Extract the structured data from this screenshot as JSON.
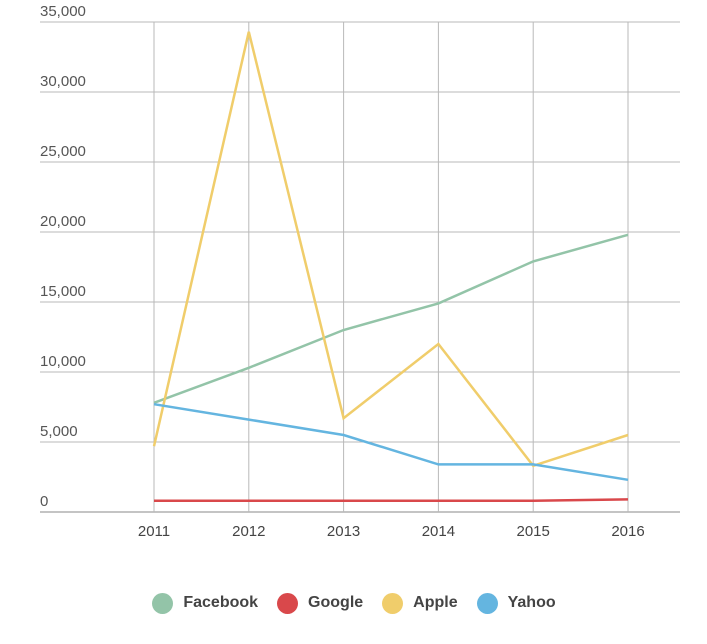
{
  "chart_data": {
    "type": "line",
    "title": "",
    "xlabel": "",
    "ylabel": "",
    "x": [
      "2011",
      "2012",
      "2013",
      "2014",
      "2015",
      "2016"
    ],
    "ylim": [
      0,
      35000
    ],
    "y_ticks": [
      0,
      5000,
      10000,
      15000,
      20000,
      25000,
      30000,
      35000
    ],
    "y_tick_labels": [
      "0",
      "5,000",
      "10,000",
      "15,000",
      "20,000",
      "25,000",
      "30,000",
      "35,000"
    ],
    "grid": true,
    "legend_position": "bottom",
    "series": [
      {
        "name": "Facebook",
        "color": "#93c4a8",
        "values": [
          7800,
          10300,
          13000,
          14900,
          17900,
          19800
        ]
      },
      {
        "name": "Google",
        "color": "#d9484b",
        "values": [
          800,
          800,
          800,
          800,
          800,
          900
        ]
      },
      {
        "name": "Apple",
        "color": "#f0cd6b",
        "values": [
          4700,
          34300,
          6700,
          12000,
          3300,
          5500
        ]
      },
      {
        "name": "Yahoo",
        "color": "#64b5e0",
        "values": [
          7700,
          6600,
          5500,
          3400,
          3400,
          2300
        ]
      }
    ]
  }
}
